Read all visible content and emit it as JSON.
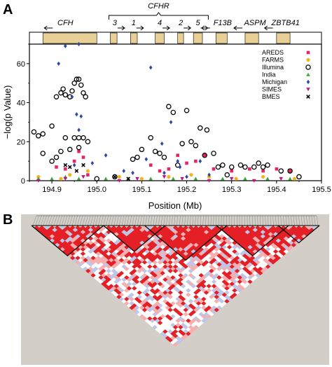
{
  "panels": {
    "a_label": "A",
    "b_label": "B"
  },
  "genes": [
    {
      "name": "CFH",
      "start": 194.88,
      "end": 195.0,
      "label_x": 194.93,
      "arrow": "left"
    },
    {
      "name": "3",
      "start": 195.03,
      "end": 195.045,
      "label_x": 195.04,
      "arrow": "right"
    },
    {
      "name": "1",
      "start": 195.075,
      "end": 195.09,
      "label_x": 195.082,
      "arrow": "right"
    },
    {
      "name": "4",
      "start": 195.13,
      "end": 195.15,
      "label_x": 195.14,
      "arrow": "right"
    },
    {
      "name": "2",
      "start": 195.18,
      "end": 195.193,
      "label_x": 195.187,
      "arrow": "right"
    },
    {
      "name": "5",
      "start": 195.215,
      "end": 195.235,
      "label_x": 195.225,
      "arrow": "right"
    },
    {
      "name": "F13B",
      "start": 195.265,
      "end": 195.29,
      "label_x": 195.28,
      "arrow": "left"
    },
    {
      "name": "ASPM",
      "start": 195.33,
      "end": 195.36,
      "label_x": 195.352,
      "arrow": "left"
    },
    {
      "name": "ZBTB41",
      "start": 195.4,
      "end": 195.43,
      "label_x": 195.42,
      "arrow": "left"
    }
  ],
  "gene_group": {
    "name": "CFHR",
    "start": 195.03,
    "end": 195.245
  },
  "chart_data": {
    "type": "scatter",
    "xlabel": "Position (Mb)",
    "ylabel": "−log(p Value)",
    "xlim": [
      194.85,
      195.5
    ],
    "ylim": [
      0,
      70
    ],
    "xticks": [
      "194.9",
      "195.0",
      "195.1",
      "195.2",
      "195.3",
      "195.4",
      "195.5"
    ],
    "xtick_values": [
      194.9,
      195.0,
      195.1,
      195.2,
      195.3,
      195.4,
      195.5
    ],
    "yticks": [
      "0",
      "20",
      "40",
      "60"
    ],
    "ytick_values": [
      0,
      20,
      40,
      60
    ],
    "legend_position": "top-right",
    "series": [
      {
        "name": "AREDS",
        "marker": "square",
        "color": "#e8236b",
        "points": [
          [
            194.91,
            7
          ],
          [
            194.93,
            6
          ],
          [
            194.95,
            10
          ],
          [
            194.96,
            15
          ],
          [
            194.97,
            12
          ],
          [
            194.98,
            3
          ],
          [
            195.12,
            8
          ],
          [
            195.14,
            5
          ],
          [
            195.16,
            6
          ],
          [
            195.18,
            13
          ],
          [
            195.2,
            9
          ],
          [
            195.22,
            10
          ],
          [
            195.24,
            13
          ],
          [
            195.26,
            6
          ],
          [
            195.3,
            5
          ],
          [
            195.34,
            6
          ],
          [
            195.37,
            5
          ],
          [
            195.4,
            6
          ],
          [
            195.43,
            5
          ]
        ]
      },
      {
        "name": "FARMS",
        "marker": "circle-filled",
        "color": "#f2b51e",
        "points": [
          [
            194.87,
            2
          ],
          [
            194.92,
            1
          ],
          [
            194.94,
            3
          ],
          [
            194.98,
            5
          ],
          [
            195.05,
            2
          ],
          [
            195.1,
            1
          ],
          [
            195.16,
            2
          ],
          [
            195.21,
            3
          ],
          [
            195.25,
            2
          ],
          [
            195.31,
            1
          ],
          [
            195.37,
            2
          ],
          [
            195.44,
            1
          ]
        ]
      },
      {
        "name": "Illumina",
        "marker": "circle-open",
        "color": "#000000",
        "points": [
          [
            194.86,
            25
          ],
          [
            194.87,
            23
          ],
          [
            194.88,
            24
          ],
          [
            194.9,
            28
          ],
          [
            194.91,
            43
          ],
          [
            194.92,
            45
          ],
          [
            194.925,
            47
          ],
          [
            194.93,
            44
          ],
          [
            194.94,
            43
          ],
          [
            194.945,
            46
          ],
          [
            194.95,
            50
          ],
          [
            194.955,
            52
          ],
          [
            194.96,
            52
          ],
          [
            194.965,
            49
          ],
          [
            194.97,
            45
          ],
          [
            194.975,
            43
          ],
          [
            194.93,
            22
          ],
          [
            194.95,
            22
          ],
          [
            194.96,
            22
          ],
          [
            194.97,
            22
          ],
          [
            194.98,
            20
          ],
          [
            194.92,
            15
          ],
          [
            194.94,
            16
          ],
          [
            194.9,
            10
          ],
          [
            194.96,
            17
          ],
          [
            194.91,
            12
          ],
          [
            195.08,
            11
          ],
          [
            195.1,
            16
          ],
          [
            195.12,
            22
          ],
          [
            195.13,
            15
          ],
          [
            195.14,
            14
          ],
          [
            195.15,
            12
          ],
          [
            195.16,
            38
          ],
          [
            195.17,
            35
          ],
          [
            195.19,
            19
          ],
          [
            195.2,
            36
          ],
          [
            195.21,
            20
          ],
          [
            195.22,
            18
          ],
          [
            195.23,
            27
          ],
          [
            195.245,
            26
          ],
          [
            195.26,
            14
          ],
          [
            195.27,
            7
          ],
          [
            195.28,
            8
          ],
          [
            195.3,
            7
          ],
          [
            195.32,
            8
          ],
          [
            195.33,
            7
          ],
          [
            195.35,
            7
          ],
          [
            195.37,
            7
          ],
          [
            195.38,
            8
          ],
          [
            195.41,
            5
          ],
          [
            195.43,
            5
          ],
          [
            195.45,
            2
          ],
          [
            194.88,
            14
          ],
          [
            195.0,
            1
          ],
          [
            195.04,
            2
          ],
          [
            195.09,
            12
          ],
          [
            195.18,
            8
          ],
          [
            195.24,
            13
          ],
          [
            195.36,
            9
          ],
          [
            195.29,
            3
          ]
        ]
      },
      {
        "name": "India",
        "marker": "triangle-up",
        "color": "#3aa83a",
        "points": [
          [
            194.87,
            1
          ],
          [
            194.9,
            1
          ],
          [
            194.93,
            2
          ],
          [
            194.96,
            1
          ],
          [
            195.02,
            1
          ],
          [
            195.07,
            1
          ],
          [
            195.12,
            1
          ],
          [
            195.17,
            1
          ],
          [
            195.22,
            1
          ],
          [
            195.28,
            1
          ],
          [
            195.33,
            1
          ],
          [
            195.38,
            1
          ],
          [
            195.43,
            1
          ]
        ]
      },
      {
        "name": "Michigan",
        "marker": "diamond",
        "color": "#2b4aa3",
        "points": [
          [
            194.93,
            69
          ],
          [
            194.96,
            70
          ],
          [
            194.915,
            60
          ],
          [
            194.945,
            43
          ],
          [
            194.955,
            34
          ],
          [
            194.96,
            26
          ],
          [
            194.965,
            33
          ],
          [
            194.95,
            8
          ],
          [
            194.99,
            9
          ],
          [
            195.02,
            13
          ],
          [
            195.06,
            5
          ],
          [
            195.08,
            4
          ],
          [
            195.12,
            58
          ],
          [
            195.145,
            19
          ],
          [
            195.165,
            30
          ],
          [
            195.185,
            7
          ],
          [
            195.11,
            11
          ],
          [
            195.15,
            4
          ],
          [
            195.2,
            2
          ],
          [
            195.23,
            10
          ],
          [
            195.25,
            3
          ],
          [
            195.18,
            10
          ]
        ]
      },
      {
        "name": "SIMES",
        "marker": "triangle-down",
        "color": "#c1157e",
        "points": [
          [
            194.87,
            0
          ],
          [
            194.93,
            1
          ],
          [
            194.97,
            2
          ],
          [
            195.05,
            0
          ],
          [
            195.09,
            1
          ],
          [
            195.15,
            2
          ],
          [
            195.19,
            1
          ],
          [
            195.25,
            0
          ],
          [
            195.3,
            1
          ],
          [
            195.35,
            0
          ],
          [
            195.41,
            1
          ]
        ]
      },
      {
        "name": "BMES",
        "marker": "cross",
        "color": "#000000",
        "points": [
          [
            194.93,
            8
          ],
          [
            194.94,
            7
          ],
          [
            194.955,
            5
          ],
          [
            194.97,
            8
          ],
          [
            195.04,
            2
          ],
          [
            195.07,
            1
          ]
        ]
      }
    ]
  },
  "ld_colors": {
    "strong": "#e41f26",
    "weak": "#f7aeae",
    "low": "#bcc7ea",
    "background": "#d3cfc8"
  }
}
